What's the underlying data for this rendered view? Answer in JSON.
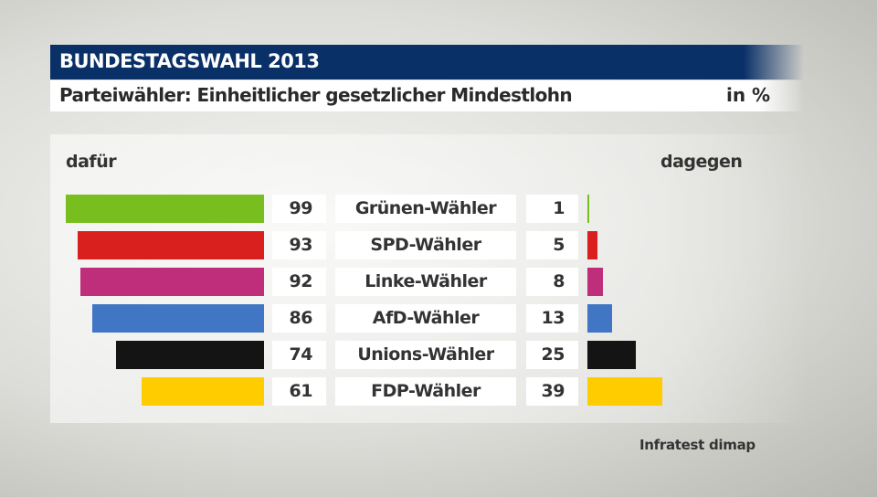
{
  "header": {
    "title": "BUNDESTAGSWAHL 2013",
    "subtitle": "Parteiwähler: Einheitlicher gesetzlicher Mindestlohn",
    "unit": "in %"
  },
  "source": "Infratest dimap",
  "chart_data": {
    "type": "bar",
    "orientation": "horizontal-diverging",
    "left_label": "dafür",
    "right_label": "dagegen",
    "categories": [
      "Grünen-Wähler",
      "SPD-Wähler",
      "Linke-Wähler",
      "AfD-Wähler",
      "Unions-Wähler",
      "FDP-Wähler"
    ],
    "series": [
      {
        "name": "dafür",
        "values": [
          99,
          93,
          92,
          86,
          74,
          61
        ]
      },
      {
        "name": "dagegen",
        "values": [
          1,
          5,
          8,
          13,
          25,
          39
        ]
      }
    ],
    "colors": [
      "#78be1e",
      "#d9201f",
      "#bf2e7a",
      "#4176c5",
      "#141414",
      "#ffcc00"
    ]
  }
}
